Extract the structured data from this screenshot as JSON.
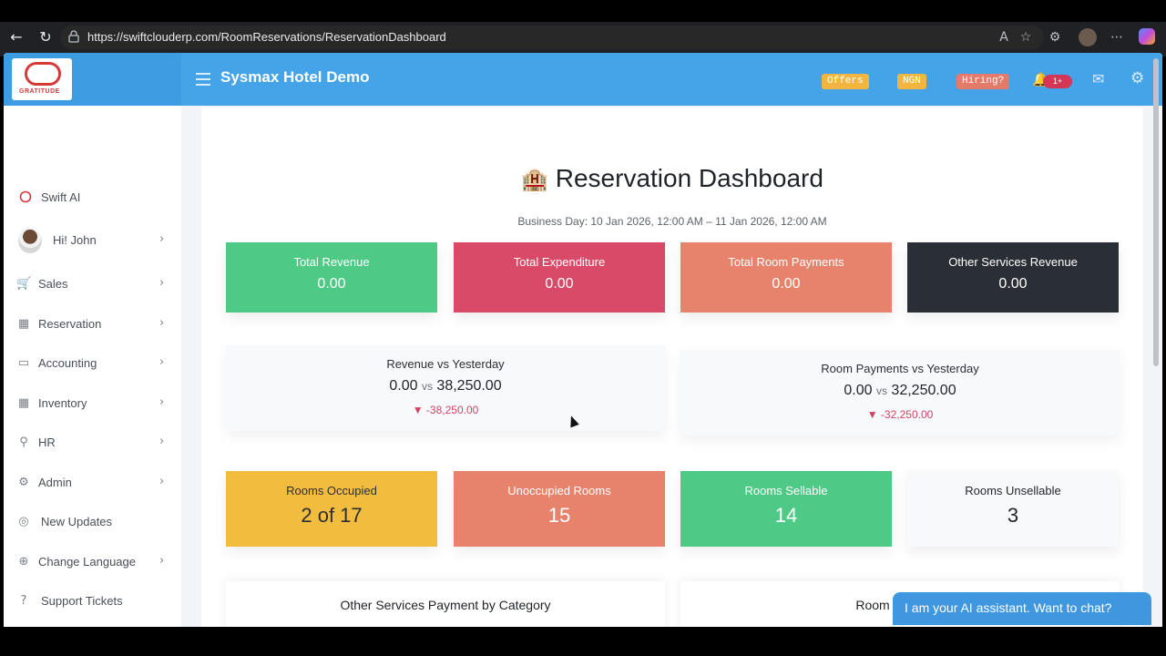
{
  "browser": {
    "url": "https://swiftclouderp.com/RoomReservations/ReservationDashboard"
  },
  "header": {
    "title": "Sysmax Hotel Demo",
    "logo_text": "GRATITUDE",
    "pills": [
      {
        "label": "Offers",
        "color": "#f2b63f"
      },
      {
        "label": "NGN",
        "color": "#f2b63f"
      },
      {
        "label": "Hiring?",
        "color": "#e47a6a"
      }
    ],
    "notification_count": "1+"
  },
  "sidebar": {
    "items": [
      {
        "label": "Swift AI",
        "icon": "circle-icon"
      },
      {
        "label": "Hi! John",
        "icon": "avatar"
      },
      {
        "label": "Sales",
        "icon": "cart-icon"
      },
      {
        "label": "Reservation",
        "icon": "grid-icon"
      },
      {
        "label": "Accounting",
        "icon": "wallet-icon"
      },
      {
        "label": "Inventory",
        "icon": "boxes-icon"
      },
      {
        "label": "HR",
        "icon": "person-icon"
      },
      {
        "label": "Admin",
        "icon": "gear-icon"
      },
      {
        "label": "New Updates",
        "icon": "broadcast-icon"
      },
      {
        "label": "Change Language",
        "icon": "globe-icon"
      },
      {
        "label": "Support Tickets",
        "icon": "question-icon"
      }
    ]
  },
  "dashboard": {
    "title": "Reservation Dashboard",
    "business_day": "Business Day: 10 Jan 2026, 12:00 AM – 11 Jan 2026, 12:00 AM",
    "summary_cards": [
      {
        "title": "Total Revenue",
        "value": "0.00",
        "color": "#4fc986"
      },
      {
        "title": "Total Expenditure",
        "value": "0.00",
        "color": "#d84a68"
      },
      {
        "title": "Total Room Payments",
        "value": "0.00",
        "color": "#e7836d"
      },
      {
        "title": "Other Services Revenue",
        "value": "0.00",
        "color": "#2a2f35"
      }
    ],
    "comparisons": [
      {
        "title": "Revenue vs Yesterday",
        "today": "0.00",
        "vs": "vs",
        "yesterday": "38,250.00",
        "delta": "▼ -38,250.00"
      },
      {
        "title": "Room Payments vs Yesterday",
        "today": "0.00",
        "vs": "vs",
        "yesterday": "32,250.00",
        "delta": "▼ -32,250.00"
      }
    ],
    "room_cards": [
      {
        "title": "Rooms Occupied",
        "value": "2 of 17",
        "color": "#f2bd3f"
      },
      {
        "title": "Unoccupied Rooms",
        "value": "15",
        "color": "#e7836d"
      },
      {
        "title": "Rooms Sellable",
        "value": "14",
        "color": "#4fc986"
      },
      {
        "title": "Rooms Unsellable",
        "value": "3",
        "color": "#f8f9fb"
      }
    ],
    "sections": [
      {
        "title": "Other Services Payment by Category"
      },
      {
        "title": "Room Revenue"
      }
    ]
  },
  "chat": {
    "label": "I am your AI assistant. Want to chat?"
  }
}
